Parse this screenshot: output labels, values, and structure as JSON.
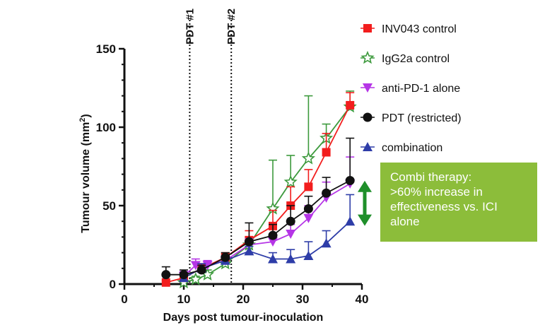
{
  "chart_data": {
    "type": "line",
    "title": "",
    "xlabel": "Days post tumour-inoculation",
    "ylabel_main": "Tumour volume (mm",
    "ylabel_sup": "2",
    "ylabel_close": ")",
    "xlim": [
      0,
      40
    ],
    "ylim": [
      0,
      150
    ],
    "xticks": [
      "0",
      "10",
      "20",
      "30",
      "40"
    ],
    "yticks": [
      "0",
      "50",
      "100",
      "150"
    ],
    "grid": false,
    "legend_position": "top-right",
    "events": [
      {
        "label": "PDT #1",
        "x": 11
      },
      {
        "label": "PDT #2",
        "x": 18
      }
    ],
    "series": [
      {
        "name": "INV043 control",
        "color": "#f21d1d",
        "marker": "square-filled",
        "x": [
          7,
          10,
          13,
          17,
          21,
          25,
          28,
          31,
          34,
          38
        ],
        "y": [
          1,
          4,
          10,
          17,
          28,
          37,
          50,
          62,
          84,
          114
        ],
        "err": [
          1,
          2,
          3,
          3,
          6,
          10,
          12,
          11,
          12,
          8
        ]
      },
      {
        "name": "IgG2a control",
        "color": "#3d9a3d",
        "marker": "star-open",
        "x": [
          10,
          12,
          14,
          17,
          21,
          25,
          28,
          31,
          34,
          38
        ],
        "y": [
          1,
          3,
          6,
          13,
          25,
          48,
          65,
          80,
          93,
          113
        ],
        "err": [
          1,
          2,
          3,
          3,
          5,
          31,
          17,
          40,
          9,
          10
        ]
      },
      {
        "name": "anti-PD-1 alone",
        "color": "#b535e6",
        "marker": "triangle-down",
        "x": [
          10,
          12,
          14,
          17,
          21,
          25,
          28,
          31,
          34,
          38
        ],
        "y": [
          5,
          12,
          12,
          15,
          25,
          27,
          32,
          42,
          55,
          64
        ],
        "err": [
          3,
          4,
          3,
          3,
          4,
          5,
          6,
          8,
          10,
          17
        ]
      },
      {
        "name": "PDT (restricted)",
        "color": "#111111",
        "marker": "circle-filled",
        "x": [
          7,
          10,
          13,
          17,
          21,
          25,
          28,
          31,
          34,
          38
        ],
        "y": [
          6,
          6,
          9,
          17,
          27,
          31,
          40,
          48,
          58,
          66
        ],
        "err": [
          5,
          3,
          3,
          3,
          12,
          7,
          10,
          8,
          10,
          27
        ]
      },
      {
        "name": "combination",
        "color": "#2e3da8",
        "marker": "triangle-up",
        "x": [
          10,
          13,
          17,
          21,
          25,
          28,
          31,
          34,
          38
        ],
        "y": [
          4,
          10,
          15,
          21,
          16,
          16,
          18,
          26,
          40
        ],
        "err": [
          2,
          3,
          3,
          3,
          4,
          6,
          9,
          8,
          17
        ]
      }
    ]
  },
  "callout": {
    "lines": [
      "Combi therapy:",
      ">60% increase in",
      "effectiveness vs. ICI",
      "alone"
    ],
    "background": "#8cbd3a",
    "arrow_color": "#1f8f2a",
    "arrow_from_y": 65,
    "arrow_to_y": 38
  }
}
